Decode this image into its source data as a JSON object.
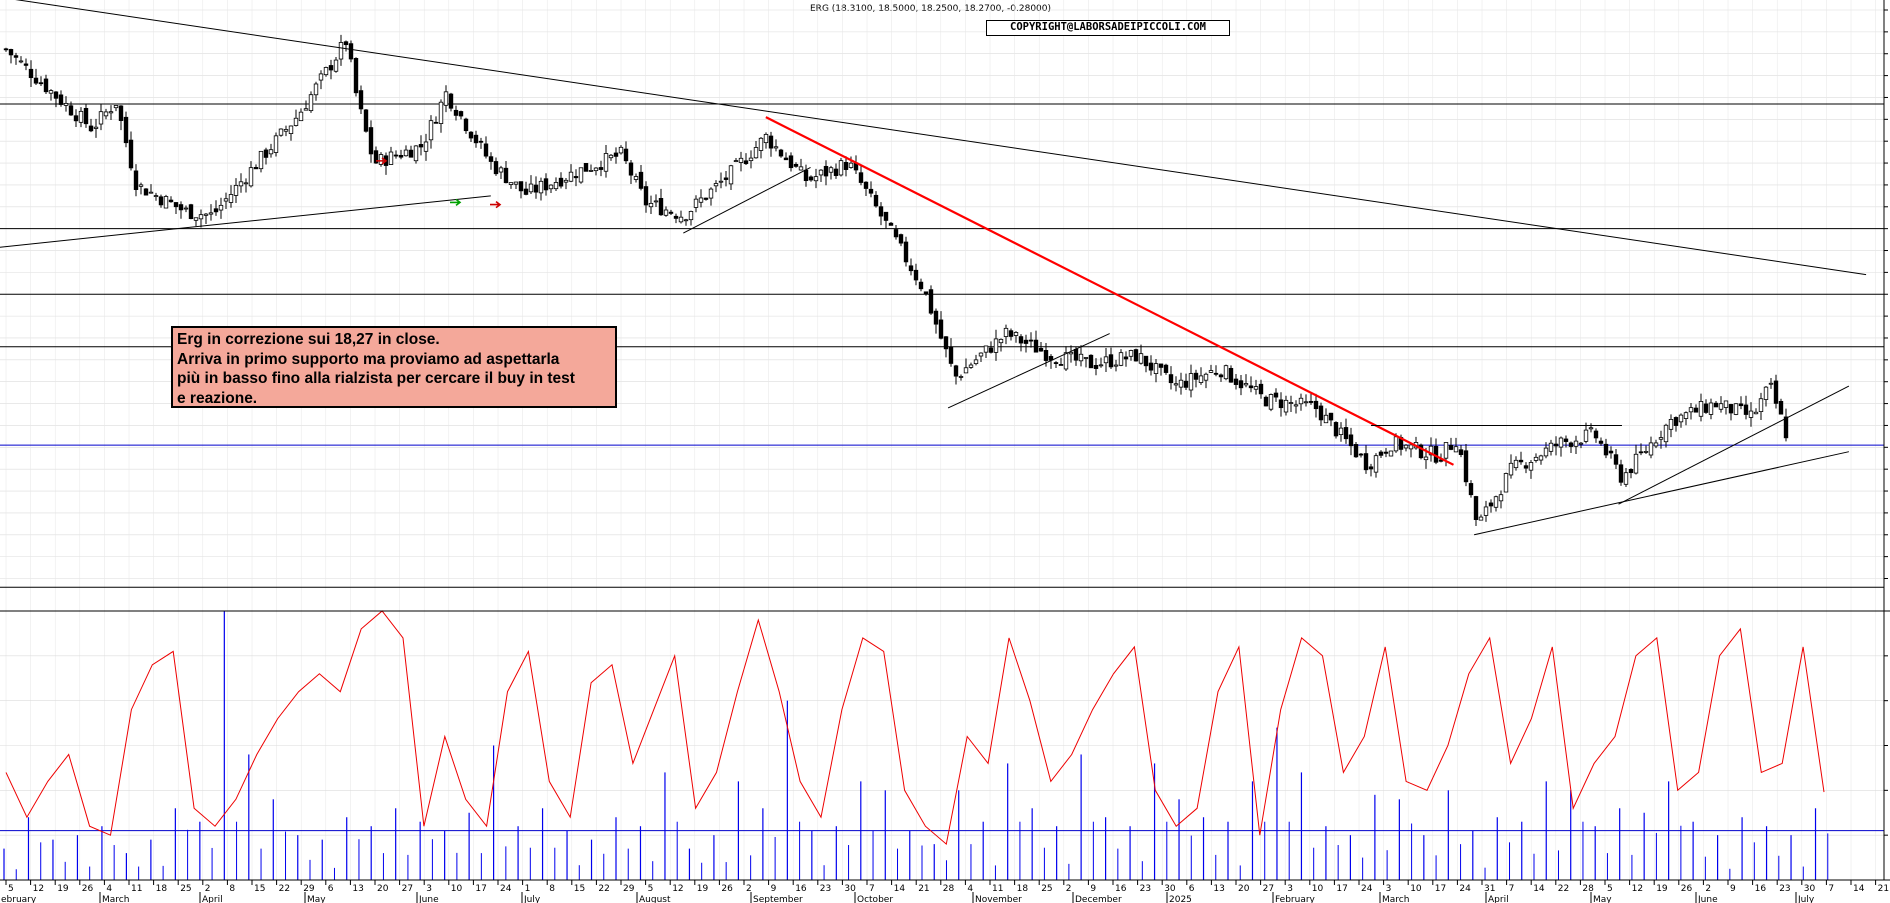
{
  "header": {
    "title": "ERG (18.3100, 18.5000, 18.2500, 18.2700, -0.28000)",
    "copyright": "COPYRIGHT@LABORSADEIPICCOLI.COM"
  },
  "annotation": {
    "lines": [
      "Erg in correzione sui 18,27 in close.",
      "Arriva in primo supporto ma proviamo ad aspettarla",
      "più in basso fino alla rialzista per cercare il buy in test",
      "e reazione."
    ]
  },
  "colors": {
    "candle": "#000000",
    "trendline_red": "#ff0000",
    "horizontal_blue": "#0000cc",
    "oscillator": "#ee0000",
    "volume": "#0000ee"
  },
  "chart_data": [
    {
      "type": "candlestick",
      "title": "ERG (18.3100, 18.5000, 18.2500, 18.2700, -0.28000)",
      "ylim": [
        15.0,
        28.0
      ],
      "y_ticks": [
        "15.0",
        "15.5",
        "16.0",
        "16.5",
        "17.0",
        "17.5",
        "18.0",
        "18.5",
        "19.0",
        "19.5",
        "20.0",
        "20.5",
        "21.0",
        "21.5",
        "22.0",
        "22.5",
        "23.0",
        "23.5",
        "24.0",
        "24.5",
        "25.0",
        "25.5",
        "26.0",
        "26.5",
        "27.0",
        "27.5",
        "28.0"
      ],
      "x_ticks": [
        "5",
        "12",
        "19",
        "26",
        "4",
        "11",
        "18",
        "25",
        "2",
        "8",
        "15",
        "22",
        "29",
        "6",
        "13",
        "20",
        "27",
        "3",
        "10",
        "17",
        "24",
        "1",
        "8",
        "15",
        "22",
        "29",
        "5",
        "12",
        "19",
        "26",
        "2",
        "9",
        "16",
        "23",
        "30",
        "7",
        "14",
        "21",
        "28",
        "4",
        "11",
        "18",
        "25",
        "2",
        "9",
        "16",
        "23",
        "30",
        "6",
        "13",
        "20",
        "27",
        "3",
        "10",
        "17",
        "24",
        "3",
        "10",
        "17",
        "24",
        "31",
        "7",
        "14",
        "22",
        "28",
        "5",
        "12",
        "19",
        "26",
        "2",
        "9",
        "16",
        "23",
        "30",
        "7",
        "14",
        "21"
      ],
      "x_month_labels": [
        "ebruary",
        "March",
        "April",
        "May",
        "June",
        "July",
        "August",
        "September",
        "October",
        "November",
        "December",
        "2025",
        "February",
        "March",
        "April",
        "May",
        "June",
        "July"
      ],
      "horizontal_levels": [
        25.85,
        23.0,
        21.5,
        20.3,
        18.05,
        14.8
      ],
      "blue_levels": [
        18.05
      ],
      "last_close": 18.27,
      "close_path": [
        {
          "date": "2024-02-05",
          "close": 27.1
        },
        {
          "date": "2024-02-20",
          "close": 26.0
        },
        {
          "date": "2024-03-01",
          "close": 25.3
        },
        {
          "date": "2024-03-08",
          "close": 25.9
        },
        {
          "date": "2024-03-14",
          "close": 24.0
        },
        {
          "date": "2024-03-28",
          "close": 23.4
        },
        {
          "date": "2024-04-05",
          "close": 23.3
        },
        {
          "date": "2024-04-18",
          "close": 24.5
        },
        {
          "date": "2024-04-30",
          "close": 25.6
        },
        {
          "date": "2024-05-14",
          "close": 27.3
        },
        {
          "date": "2024-05-17",
          "close": 26.0
        },
        {
          "date": "2024-05-22",
          "close": 24.5
        },
        {
          "date": "2024-06-05",
          "close": 24.9
        },
        {
          "date": "2024-06-12",
          "close": 26.1
        },
        {
          "date": "2024-06-25",
          "close": 24.5
        },
        {
          "date": "2024-07-05",
          "close": 23.8
        },
        {
          "date": "2024-07-20",
          "close": 24.3
        },
        {
          "date": "2024-08-02",
          "close": 24.7
        },
        {
          "date": "2024-08-09",
          "close": 23.6
        },
        {
          "date": "2024-08-20",
          "close": 23.3
        },
        {
          "date": "2024-09-02",
          "close": 24.2
        },
        {
          "date": "2024-09-13",
          "close": 25.1
        },
        {
          "date": "2024-09-25",
          "close": 24.1
        },
        {
          "date": "2024-10-07",
          "close": 24.5
        },
        {
          "date": "2024-10-18",
          "close": 23.1
        },
        {
          "date": "2024-10-29",
          "close": 21.6
        },
        {
          "date": "2024-11-07",
          "close": 19.6
        },
        {
          "date": "2024-11-22",
          "close": 20.6
        },
        {
          "date": "2024-12-05",
          "close": 20.1
        },
        {
          "date": "2024-12-17",
          "close": 19.9
        },
        {
          "date": "2024-12-30",
          "close": 20.1
        },
        {
          "date": "2025-01-10",
          "close": 19.4
        },
        {
          "date": "2025-01-23",
          "close": 19.8
        },
        {
          "date": "2025-02-05",
          "close": 19.1
        },
        {
          "date": "2025-02-20",
          "close": 18.9
        },
        {
          "date": "2025-03-07",
          "close": 17.6
        },
        {
          "date": "2025-03-14",
          "close": 18.1
        },
        {
          "date": "2025-03-28",
          "close": 17.8
        },
        {
          "date": "2025-04-02",
          "close": 18.2
        },
        {
          "date": "2025-04-08",
          "close": 16.2
        },
        {
          "date": "2025-04-18",
          "close": 17.5
        },
        {
          "date": "2025-05-02",
          "close": 18.1
        },
        {
          "date": "2025-05-12",
          "close": 18.3
        },
        {
          "date": "2025-05-20",
          "close": 17.3
        },
        {
          "date": "2025-06-03",
          "close": 18.6
        },
        {
          "date": "2025-06-16",
          "close": 19.0
        },
        {
          "date": "2025-06-27",
          "close": 18.7
        },
        {
          "date": "2025-07-02",
          "close": 19.4
        },
        {
          "date": "2025-07-07",
          "close": 18.27
        }
      ],
      "trendlines": [
        {
          "color": "black",
          "from": {
            "date": "2024-01-25",
            "price": 28.4
          },
          "to": {
            "date": "2025-07-30",
            "price": 21.95
          }
        },
        {
          "color": "black",
          "from": {
            "date": "2024-01-25",
            "price": 22.5
          },
          "to": {
            "date": "2024-06-25",
            "price": 23.75
          }
        },
        {
          "color": "black",
          "from": {
            "date": "2024-08-20",
            "price": 22.9
          },
          "to": {
            "date": "2024-09-26",
            "price": 24.4
          }
        },
        {
          "color": "black",
          "from": {
            "date": "2024-11-05",
            "price": 18.9
          },
          "to": {
            "date": "2024-12-22",
            "price": 20.6
          }
        },
        {
          "color": "red",
          "from": {
            "date": "2024-09-13",
            "price": 25.55
          },
          "to": {
            "date": "2025-04-01",
            "price": 17.6
          }
        },
        {
          "color": "black",
          "from": {
            "date": "2025-04-07",
            "price": 16.0
          },
          "to": {
            "date": "2025-07-25",
            "price": 17.9
          }
        },
        {
          "color": "black",
          "from": {
            "date": "2025-05-19",
            "price": 16.7
          },
          "to": {
            "date": "2025-07-25",
            "price": 19.4
          }
        },
        {
          "color": "black",
          "from": {
            "date": "2025-03-08",
            "price": 18.5
          },
          "to": {
            "date": "2025-05-20",
            "price": 18.5
          }
        }
      ]
    },
    {
      "type": "bar",
      "name": "lower pane",
      "ylim": [
        0,
        30000
      ],
      "y_ticks": [
        "5000",
        "10000",
        "15000",
        "20000",
        "25000",
        "30000"
      ],
      "horizontal_levels": [
        5500,
        30000
      ],
      "series": [
        {
          "type": "line",
          "color": "red",
          "values": [
            12000,
            7000,
            11000,
            14000,
            6000,
            5000,
            19000,
            24000,
            25500,
            8000,
            6000,
            9000,
            14000,
            18000,
            21000,
            23000,
            21000,
            28000,
            30000,
            27000,
            6000,
            16000,
            9000,
            6000,
            21000,
            25500,
            11000,
            7000,
            22000,
            24000,
            13000,
            19000,
            25000,
            8000,
            12000,
            21000,
            29000,
            21000,
            11000,
            7000,
            19000,
            27000,
            25500,
            10000,
            6000,
            4000,
            16000,
            13000,
            27000,
            20000,
            11000,
            14000,
            19000,
            23000,
            26000,
            10000,
            6000,
            8000,
            21000,
            26000,
            5000,
            19000,
            27000,
            25000,
            12000,
            16000,
            26000,
            11000,
            10000,
            15000,
            23000,
            27000,
            13000,
            18000,
            26000,
            8000,
            13000,
            16000,
            25000,
            27000,
            10000,
            12000,
            25000,
            28000,
            12000,
            13000,
            26000,
            9800
          ]
        },
        {
          "type": "bar",
          "color": "blue",
          "values": [
            3500,
            7000,
            4500,
            5000,
            6000,
            3000,
            4500,
            8000,
            6500,
            30000,
            14000,
            9000,
            5000,
            4500,
            7000,
            6000,
            8000,
            6500,
            5500,
            7500,
            15000,
            6000,
            8000,
            5500,
            4500,
            7000,
            6000,
            12000,
            3500,
            5000,
            11000,
            8000,
            20000,
            5500,
            6000,
            11000,
            10000,
            5500,
            4000,
            10000,
            6500,
            13000,
            8000,
            6000,
            14000,
            7000,
            6000,
            13000,
            9000,
            7000,
            6500,
            11000,
            17000,
            12000,
            6000,
            5000,
            9500,
            9000,
            5000,
            10000,
            5500,
            7000,
            6500,
            11000,
            10000,
            6000,
            8000,
            7500,
            11000,
            6500,
            5000,
            7000,
            6000,
            5000,
            8000
          ]
        }
      ]
    }
  ]
}
